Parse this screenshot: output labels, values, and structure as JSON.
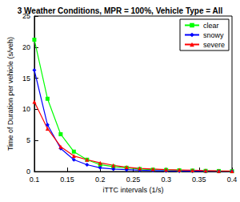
{
  "chart_data": {
    "type": "line",
    "title": "3 Weather Conditions, MPR = 100%, Vehicle Type = All",
    "x_label": "iTTC intervals (1/s)",
    "y_label": "Time of Duration per vehicle (s/veh)",
    "x": [
      0.1,
      0.12,
      0.14,
      0.16,
      0.18,
      0.2,
      0.22,
      0.24,
      0.26,
      0.28,
      0.3,
      0.32,
      0.34,
      0.36,
      0.38,
      0.4
    ],
    "series": [
      {
        "name": "clear",
        "color": "#00ff00",
        "marker": "square",
        "values": [
          21.2,
          11.7,
          6.0,
          3.2,
          1.9,
          1.1,
          0.8,
          0.6,
          0.4,
          0.3,
          0.25,
          0.2,
          0.15,
          0.1,
          0.08,
          0.05
        ]
      },
      {
        "name": "snowy",
        "color": "#0000ff",
        "marker": "diamond",
        "values": [
          16.3,
          7.5,
          3.7,
          1.9,
          1.1,
          0.6,
          0.4,
          0.3,
          0.2,
          0.15,
          0.1,
          0.08,
          0.05,
          0.04,
          0.03,
          0.02
        ]
      },
      {
        "name": "severe",
        "color": "#ff0000",
        "marker": "triangle",
        "values": [
          11.2,
          6.9,
          4.0,
          2.5,
          1.9,
          1.4,
          1.0,
          0.7,
          0.5,
          0.4,
          0.3,
          0.25,
          0.2,
          0.15,
          0.1,
          0.08
        ]
      }
    ],
    "xlim": [
      0.1,
      0.4
    ],
    "xticks": [
      0.1,
      0.15,
      0.2,
      0.25,
      0.3,
      0.35,
      0.4
    ],
    "ylim": [
      0,
      25
    ],
    "yticks": [
      0,
      5,
      10,
      15,
      20,
      25
    ],
    "grid": false,
    "legend": "upper right"
  }
}
